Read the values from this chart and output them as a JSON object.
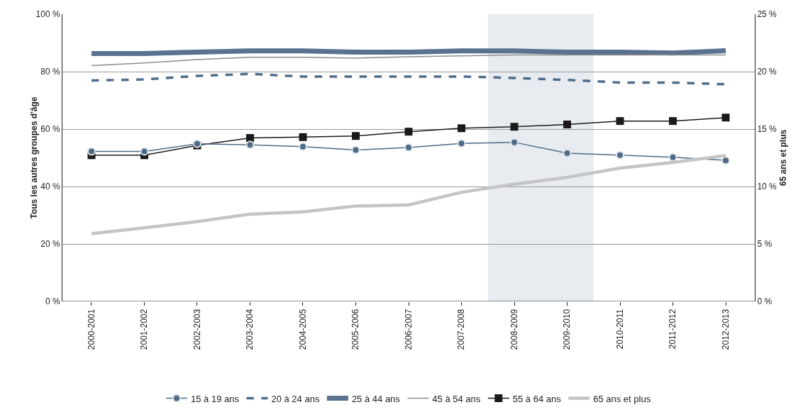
{
  "chart_data": {
    "type": "line",
    "categories": [
      "2000-2001",
      "2001-2002",
      "2002-2003",
      "2003-2004",
      "2004-2005",
      "2005-2006",
      "2006-2007",
      "2007-2008",
      "2008-2009",
      "2009-2010",
      "2010-2011",
      "2011-2012",
      "2012-2013"
    ],
    "ylabel": "Tous les autres groupes d'âge",
    "y2label": "65 ans et plus",
    "ylim": [
      0,
      100
    ],
    "yticks": [
      {
        "value": 0,
        "label": "0 %"
      },
      {
        "value": 20,
        "label": "20 %"
      },
      {
        "value": 40,
        "label": "40 %"
      },
      {
        "value": 60,
        "label": "60 %"
      },
      {
        "value": 80,
        "label": "80 %"
      },
      {
        "value": 100,
        "label": "100 %"
      }
    ],
    "y2lim": [
      0,
      25
    ],
    "y2ticks": [
      {
        "value": 0,
        "label": "0 %"
      },
      {
        "value": 5,
        "label": "5 %"
      },
      {
        "value": 10,
        "label": "10 %"
      },
      {
        "value": 15,
        "label": "15 %"
      },
      {
        "value": 20,
        "label": "20 %"
      },
      {
        "value": 25,
        "label": "25 %"
      }
    ],
    "grid": "y",
    "legend": "bottom",
    "bands": [
      {
        "axis": "x",
        "from": "2008-2009",
        "to": "2009-2010",
        "color": "#e8ecf1"
      }
    ],
    "series": [
      {
        "name": "15 à 19 ans",
        "color": "#4d6b87",
        "marker": "circle",
        "line_style": "solid",
        "values": [
          52.2,
          52.2,
          54.9,
          54.5,
          53.9,
          52.7,
          53.6,
          55,
          55.4,
          51.6,
          50.9,
          50.2,
          49.1
        ]
      },
      {
        "name": "20 à 24 ans",
        "color": "#4f6d8a",
        "marker": "none",
        "line_style": "dashed",
        "values": [
          76.9,
          77.3,
          78.5,
          79.2,
          78.3,
          78.3,
          78.3,
          78.3,
          77.8,
          77.1,
          76.2,
          76.2,
          75.6
        ]
      },
      {
        "name": "25 à 44 ans",
        "color": "#5a7290",
        "marker": "none",
        "line_style": "solid",
        "values": [
          86.3,
          86.3,
          86.8,
          87.2,
          87.2,
          86.8,
          86.8,
          87.2,
          87.2,
          86.8,
          86.8,
          86.5,
          87.3
        ]
      },
      {
        "name": "45 à 54 ans",
        "color": "#8c8c8c",
        "marker": "none",
        "line_style": "solid",
        "values": [
          82.1,
          83,
          84.2,
          85,
          85,
          84.7,
          85.2,
          85.5,
          85.8,
          85.8,
          85.8,
          85.8,
          85.8
        ]
      },
      {
        "name": "55 à 64 ans",
        "color": "#1a1a1a",
        "marker": "square",
        "line_style": "solid",
        "values": [
          50.9,
          50.9,
          54.3,
          56.9,
          57.2,
          57.6,
          59.1,
          60.3,
          60.8,
          61.6,
          62.8,
          62.8,
          64
        ]
      },
      {
        "name": "65 ans et plus",
        "color": "#c4c4c4",
        "marker": "none",
        "line_style": "solid",
        "axis": "y2",
        "values": [
          5.9,
          6.4,
          6.95,
          7.6,
          7.8,
          8.3,
          8.4,
          9.5,
          10.2,
          10.8,
          11.6,
          12.1,
          12.7
        ]
      }
    ]
  }
}
